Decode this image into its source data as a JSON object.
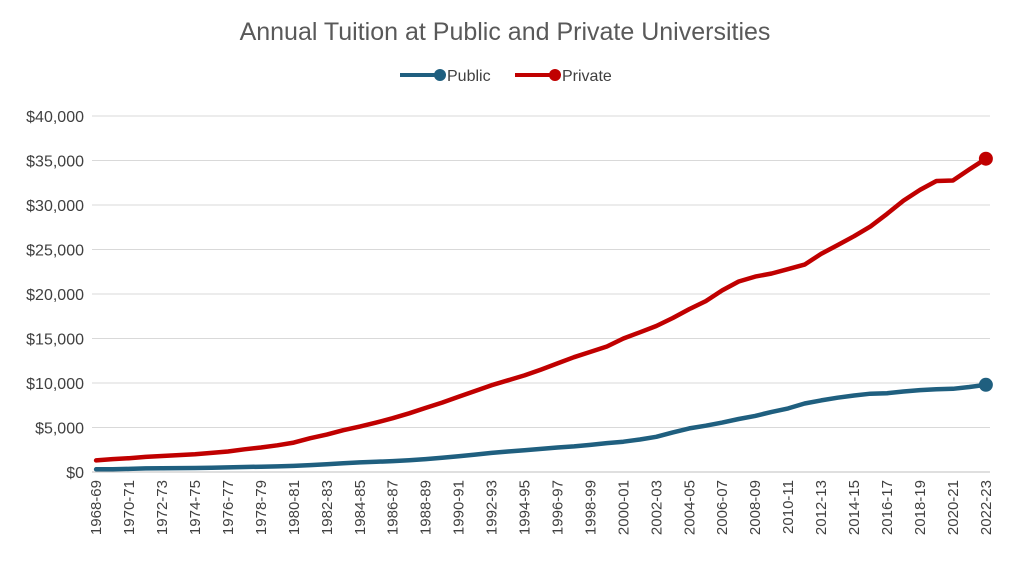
{
  "chart_data": {
    "type": "line",
    "title": "Annual Tuition at Public and Private Universities",
    "xlabel": "",
    "ylabel": "",
    "ylim": [
      0,
      40000
    ],
    "yticks": [
      0,
      5000,
      10000,
      15000,
      20000,
      25000,
      30000,
      35000,
      40000
    ],
    "ytick_labels": [
      "$0",
      "$5,000",
      "$10,000",
      "$15,000",
      "$20,000",
      "$25,000",
      "$30,000",
      "$35,000",
      "$40,000"
    ],
    "legend_position": "top-center",
    "grid": true,
    "x": [
      "1968-69",
      "1969-70",
      "1970-71",
      "1971-72",
      "1972-73",
      "1973-74",
      "1974-75",
      "1975-76",
      "1976-77",
      "1977-78",
      "1978-79",
      "1979-80",
      "1980-81",
      "1981-82",
      "1982-83",
      "1983-84",
      "1984-85",
      "1985-86",
      "1986-87",
      "1987-88",
      "1988-89",
      "1989-90",
      "1990-91",
      "1991-92",
      "1992-93",
      "1993-94",
      "1994-95",
      "1995-96",
      "1996-97",
      "1997-98",
      "1998-99",
      "1999-00",
      "2000-01",
      "2001-02",
      "2002-03",
      "2003-04",
      "2004-05",
      "2005-06",
      "2006-07",
      "2007-08",
      "2008-09",
      "2009-10",
      "2010-11",
      "2011-12",
      "2012-13",
      "2013-14",
      "2014-15",
      "2015-16",
      "2016-17",
      "2017-18",
      "2018-19",
      "2019-20",
      "2020-21",
      "2021-22",
      "2022-23"
    ],
    "x_tick_labels": [
      "1968-69",
      "1970-71",
      "1972-73",
      "1974-75",
      "1976-77",
      "1978-79",
      "1980-81",
      "1982-83",
      "1984-85",
      "1986-87",
      "1988-89",
      "1990-91",
      "1992-93",
      "1994-95",
      "1996-97",
      "1998-99",
      "2000-01",
      "2002-03",
      "2004-05",
      "2006-07",
      "2008-09",
      "2010-11",
      "2012-13",
      "2014-15",
      "2016-17",
      "2018-19",
      "2020-21",
      "2022-23"
    ],
    "series": [
      {
        "name": "Public",
        "color": "#1f5f7f",
        "values": [
          300,
          320,
          350,
          400,
          420,
          440,
          450,
          470,
          520,
          560,
          600,
          630,
          680,
          780,
          880,
          980,
          1080,
          1150,
          1230,
          1330,
          1450,
          1600,
          1780,
          1950,
          2150,
          2300,
          2450,
          2600,
          2750,
          2880,
          3050,
          3250,
          3400,
          3650,
          3950,
          4450,
          4900,
          5200,
          5550,
          5950,
          6300,
          6750,
          7150,
          7700,
          8050,
          8350,
          8600,
          8800,
          8850,
          9050,
          9200,
          9300,
          9350,
          9550,
          9800
        ]
      },
      {
        "name": "Private",
        "color": "#c00000",
        "values": [
          1300,
          1450,
          1550,
          1700,
          1800,
          1900,
          2000,
          2150,
          2300,
          2550,
          2750,
          3000,
          3300,
          3800,
          4200,
          4700,
          5100,
          5550,
          6050,
          6600,
          7200,
          7800,
          8450,
          9100,
          9750,
          10300,
          10850,
          11500,
          12200,
          12900,
          13500,
          14100,
          15000,
          15700,
          16400,
          17300,
          18300,
          19200,
          20400,
          21400,
          21950,
          22300,
          22800,
          23300,
          24500,
          25500,
          26500,
          27600,
          29000,
          30500,
          31700,
          32700,
          32750,
          34000,
          35200
        ]
      }
    ]
  }
}
